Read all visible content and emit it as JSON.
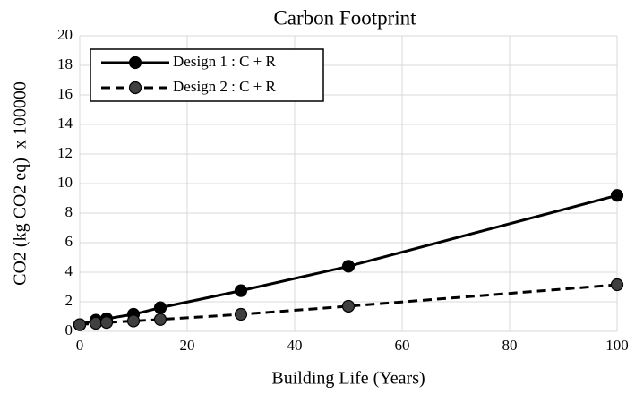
{
  "chart_data": {
    "type": "line",
    "title": "Carbon Footprint",
    "x_label": "Building Life (Years)",
    "y_label": "CO2 (kg CO2 eq)  x 100000",
    "x": [
      0,
      3,
      5,
      10,
      15,
      30,
      50,
      100
    ],
    "series": [
      {
        "name": "Design 1 : C + R",
        "color": "#000000",
        "marker_color": "#000000",
        "line_style": "solid",
        "values": [
          0.45,
          0.75,
          0.85,
          1.15,
          1.6,
          2.75,
          4.4,
          9.2
        ]
      },
      {
        "name": "Design 2 : C + R",
        "color": "#000000",
        "marker_color": "#404040",
        "line_style": "dashed",
        "values": [
          0.45,
          0.55,
          0.6,
          0.7,
          0.8,
          1.15,
          1.7,
          3.15
        ]
      }
    ],
    "xlim": [
      0,
      100
    ],
    "xticks": [
      0,
      20,
      40,
      60,
      80,
      100
    ],
    "ylim": [
      0,
      20
    ],
    "yticks": [
      0,
      2,
      4,
      6,
      8,
      10,
      12,
      14,
      16,
      18,
      20
    ],
    "grid": true,
    "legend": "upper left"
  }
}
